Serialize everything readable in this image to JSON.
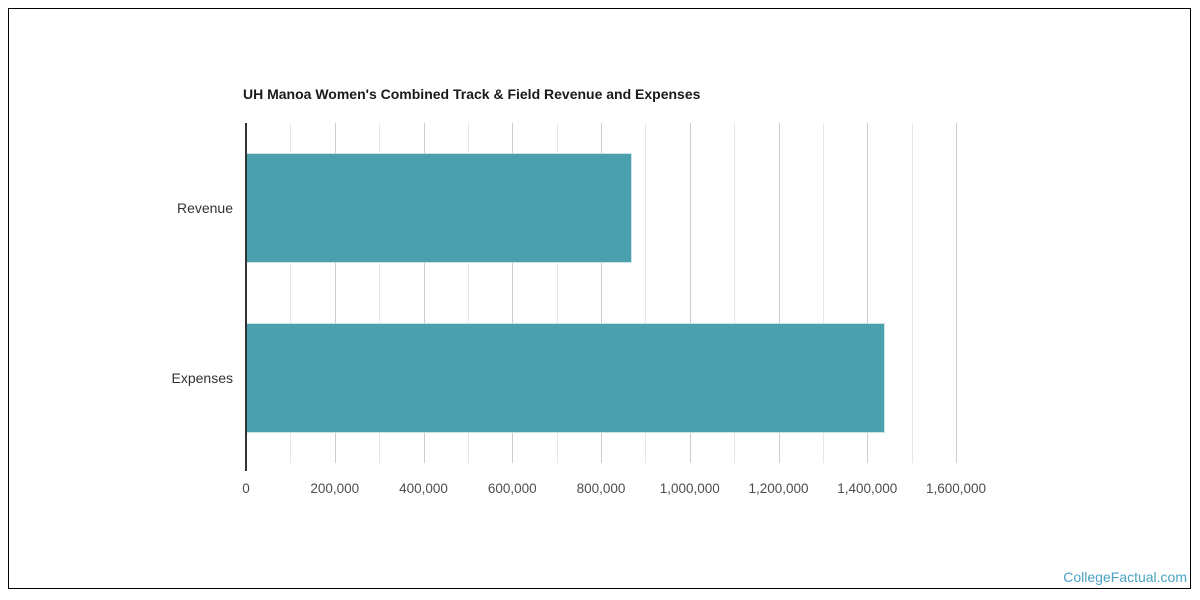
{
  "chart_data": {
    "type": "bar",
    "orientation": "horizontal",
    "title": "UH Manoa Women's Combined Track & Field Revenue and Expenses",
    "categories": [
      "Revenue",
      "Expenses"
    ],
    "values": [
      870000,
      1440000
    ],
    "xlabel": "",
    "ylabel": "",
    "xlim": [
      0,
      1600000
    ],
    "x_tick_labels": [
      "0",
      "200,000",
      "400,000",
      "600,000",
      "800,000",
      "1,000,000",
      "1,200,000",
      "1,400,000",
      "1,600,000"
    ],
    "major_tick_interval": 200000,
    "minor_tick_interval": 100000,
    "grid": "on",
    "legend": "none",
    "bar_color": "#4aa1ad",
    "gridline_major_color": "#cccccc",
    "gridline_minor_color": "#e6e6e6",
    "axis_line_color": "#333333"
  },
  "watermark": {
    "label": "CollegeFactual.com",
    "color": "#4aa3c4"
  }
}
